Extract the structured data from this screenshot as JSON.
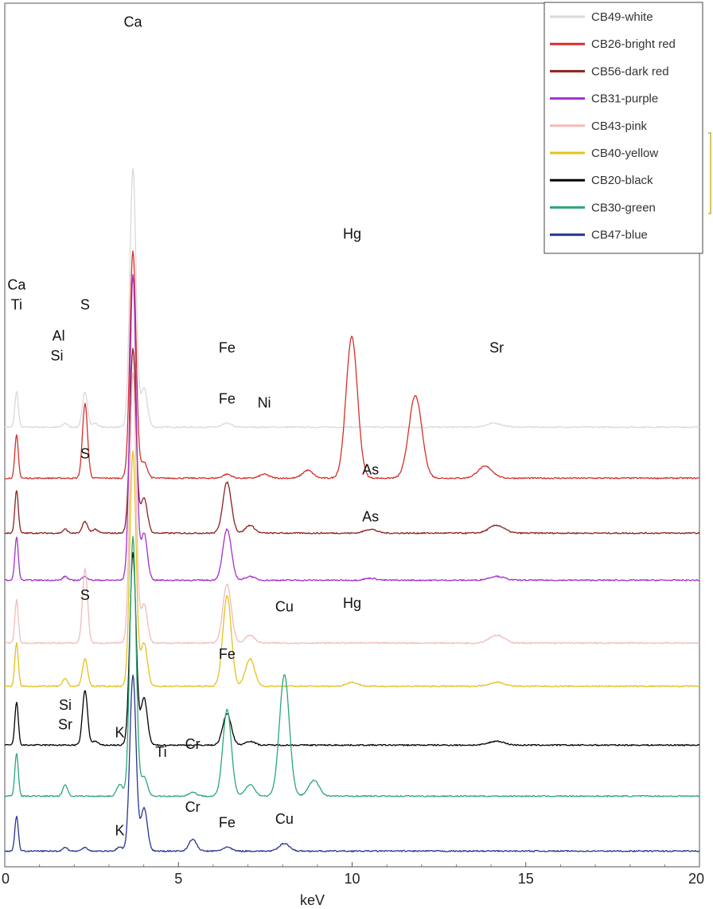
{
  "chart_data": {
    "type": "line",
    "title": "",
    "xlabel": "keV",
    "ylabel": "",
    "xlim": [
      0,
      20
    ],
    "x_ticks": [
      "0",
      "5",
      "10",
      "15",
      "20"
    ],
    "legend_position": "top-right",
    "grid": false,
    "series": [
      {
        "name": "CB49-white",
        "color": "#d9d9d9",
        "baseline": 9.2,
        "peaks": [
          [
            0.34,
            0.9
          ],
          [
            1.74,
            0.1
          ],
          [
            2.31,
            0.9
          ],
          [
            2.6,
            0.1
          ],
          [
            3.69,
            6.6
          ],
          [
            4.01,
            1.0
          ],
          [
            6.4,
            0.1
          ],
          [
            14.1,
            0.1
          ]
        ]
      },
      {
        "name": "CB26-bright red",
        "color": "#d4302a",
        "baseline": 7.9,
        "peaks": [
          [
            0.34,
            1.1
          ],
          [
            2.31,
            1.9
          ],
          [
            3.69,
            5.8
          ],
          [
            4.01,
            0.4
          ],
          [
            6.4,
            0.1
          ],
          [
            7.47,
            0.1
          ],
          [
            8.72,
            0.2
          ],
          [
            9.99,
            3.6
          ],
          [
            11.82,
            2.1
          ],
          [
            13.83,
            0.3
          ]
        ]
      },
      {
        "name": "CB56-dark red",
        "color": "#8b2020",
        "baseline": 6.5,
        "peaks": [
          [
            0.34,
            1.1
          ],
          [
            1.74,
            0.1
          ],
          [
            2.31,
            0.3
          ],
          [
            2.6,
            0.1
          ],
          [
            3.69,
            4.7
          ],
          [
            4.01,
            0.9
          ],
          [
            6.4,
            1.3
          ],
          [
            7.06,
            0.2
          ],
          [
            10.53,
            0.1
          ],
          [
            14.16,
            0.2
          ]
        ]
      },
      {
        "name": "CB31-purple",
        "color": "#a230c8",
        "baseline": 5.3,
        "peaks": [
          [
            0.34,
            1.1
          ],
          [
            1.74,
            0.1
          ],
          [
            2.31,
            0.1
          ],
          [
            3.69,
            7.8
          ],
          [
            4.01,
            1.2
          ],
          [
            6.4,
            1.3
          ],
          [
            7.06,
            0.1
          ],
          [
            10.53,
            0.05
          ],
          [
            14.16,
            0.1
          ]
        ]
      },
      {
        "name": "CB43-pink",
        "color": "#f0bcbc",
        "baseline": 3.7,
        "peaks": [
          [
            0.34,
            1.1
          ],
          [
            2.31,
            1.9
          ],
          [
            3.69,
            6.9
          ],
          [
            4.01,
            1.0
          ],
          [
            6.4,
            1.5
          ],
          [
            7.06,
            0.2
          ],
          [
            14.16,
            0.2
          ]
        ]
      },
      {
        "name": "CB40-yellow",
        "color": "#e3c21c",
        "baseline": 2.6,
        "peaks": [
          [
            0.34,
            1.1
          ],
          [
            1.74,
            0.2
          ],
          [
            2.31,
            0.7
          ],
          [
            3.69,
            6.0
          ],
          [
            4.01,
            1.1
          ],
          [
            6.4,
            2.3
          ],
          [
            7.06,
            0.7
          ],
          [
            10.0,
            0.1
          ],
          [
            14.16,
            0.1
          ]
        ]
      },
      {
        "name": "CB20-black",
        "color": "#000000",
        "baseline": 1.1,
        "peaks": [
          [
            0.34,
            1.1
          ],
          [
            2.31,
            1.4
          ],
          [
            2.6,
            0.1
          ],
          [
            3.69,
            4.9
          ],
          [
            4.01,
            1.2
          ],
          [
            6.4,
            0.8
          ],
          [
            7.06,
            0.1
          ],
          [
            14.16,
            0.1
          ]
        ]
      },
      {
        "name": "CB30-green",
        "color": "#2aa873",
        "baseline": -0.2,
        "peaks": [
          [
            0.34,
            1.1
          ],
          [
            1.74,
            0.3
          ],
          [
            3.31,
            0.3
          ],
          [
            3.69,
            6.6
          ],
          [
            4.01,
            0.5
          ],
          [
            5.41,
            0.1
          ],
          [
            6.4,
            2.2
          ],
          [
            7.06,
            0.3
          ],
          [
            8.05,
            3.1
          ],
          [
            8.9,
            0.4
          ]
        ]
      },
      {
        "name": "CB47-blue",
        "color": "#283593",
        "baseline": -1.6,
        "peaks": [
          [
            0.34,
            0.9
          ],
          [
            1.74,
            0.1
          ],
          [
            2.31,
            0.1
          ],
          [
            3.31,
            0.1
          ],
          [
            3.69,
            4.5
          ],
          [
            4.01,
            1.1
          ],
          [
            5.41,
            0.3
          ],
          [
            6.4,
            0.1
          ],
          [
            8.05,
            0.2
          ]
        ]
      }
    ],
    "annotations": [
      {
        "text": "Ca",
        "x": 3.69,
        "y": 19.4
      },
      {
        "text": "Ca",
        "x": 0.34,
        "y": 12.7
      },
      {
        "text": "Ti",
        "x": 0.34,
        "y": 12.2
      },
      {
        "text": "S",
        "x": 2.31,
        "y": 12.2
      },
      {
        "text": "Al",
        "x": 1.55,
        "y": 11.4
      },
      {
        "text": "Si",
        "x": 1.5,
        "y": 10.9
      },
      {
        "text": "Hg",
        "x": 10.0,
        "y": 14.0
      },
      {
        "text": "Fe",
        "x": 6.4,
        "y": 11.1
      },
      {
        "text": "Sr",
        "x": 14.16,
        "y": 11.1
      },
      {
        "text": "Fe",
        "x": 6.4,
        "y": 9.8
      },
      {
        "text": "Ni",
        "x": 7.47,
        "y": 9.7
      },
      {
        "text": "S",
        "x": 2.31,
        "y": 8.4
      },
      {
        "text": "As",
        "x": 10.53,
        "y": 8.0
      },
      {
        "text": "As",
        "x": 10.53,
        "y": 6.8
      },
      {
        "text": "S",
        "x": 2.31,
        "y": 4.8
      },
      {
        "text": "Cu",
        "x": 8.05,
        "y": 4.5
      },
      {
        "text": "Hg",
        "x": 10.0,
        "y": 4.6
      },
      {
        "text": "Fe",
        "x": 6.4,
        "y": 3.3
      },
      {
        "text": "Si",
        "x": 1.74,
        "y": 2.0
      },
      {
        "text": "Sr",
        "x": 1.74,
        "y": 1.5
      },
      {
        "text": "K",
        "x": 3.31,
        "y": 1.3
      },
      {
        "text": "Ti",
        "x": 4.5,
        "y": 0.8
      },
      {
        "text": "Cr",
        "x": 5.41,
        "y": 1.0
      },
      {
        "text": "Cr",
        "x": 5.41,
        "y": -0.6
      },
      {
        "text": "Fe",
        "x": 6.4,
        "y": -1.0
      },
      {
        "text": "Cu",
        "x": 8.05,
        "y": -0.9
      },
      {
        "text": "K",
        "x": 3.31,
        "y": -1.2
      }
    ]
  }
}
